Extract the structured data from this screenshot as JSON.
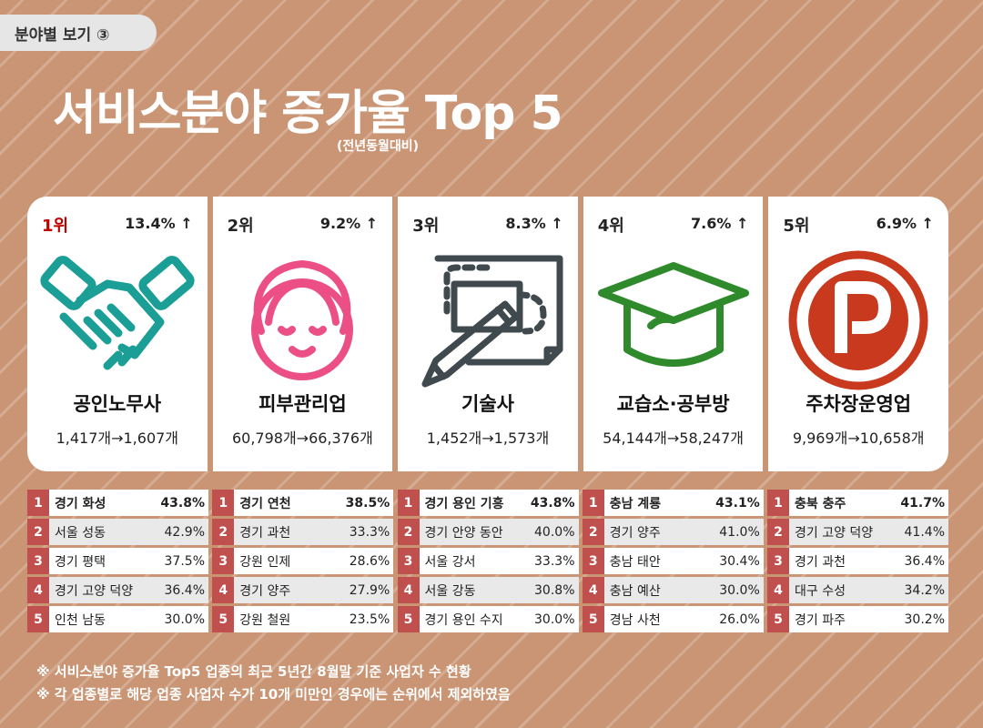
{
  "header": {
    "section_tab": "분야별 보기 ③",
    "title": "서비스분야 증가율 Top 5",
    "subtitle": "(전년동월대비)"
  },
  "cards": [
    {
      "rank": "1위",
      "rate": "13.4% ↑",
      "name": "공인노무사",
      "counts": "1,417개→1,607개",
      "icon": "handshake-icon",
      "color": "#1a9e96"
    },
    {
      "rank": "2위",
      "rate": "9.2% ↑",
      "name": "피부관리업",
      "counts": "60,798개→66,376개",
      "icon": "face-towel-icon",
      "color": "#ec4f86"
    },
    {
      "rank": "3위",
      "rate": "8.3% ↑",
      "name": "기술사",
      "counts": "1,452개→1,573개",
      "icon": "drawing-pencil-icon",
      "color": "#404a4e"
    },
    {
      "rank": "4위",
      "rate": "7.6% ↑",
      "name": "교습소·공부방",
      "counts": "54,144개→58,247개",
      "icon": "graduation-cap-icon",
      "color": "#2f8a2c"
    },
    {
      "rank": "5위",
      "rate": "6.9% ↑",
      "name": "주차장운영업",
      "counts": "9,969개→10,658개",
      "icon": "parking-icon",
      "color": "#c8391e"
    }
  ],
  "rankings": [
    [
      {
        "num": "1",
        "region": "경기 화성",
        "pct": "43.8%"
      },
      {
        "num": "2",
        "region": "서울 성동",
        "pct": "42.9%"
      },
      {
        "num": "3",
        "region": "경기 평택",
        "pct": "37.5%"
      },
      {
        "num": "4",
        "region": "경기 고양 덕양",
        "pct": "36.4%"
      },
      {
        "num": "5",
        "region": "인천 남동",
        "pct": "30.0%"
      }
    ],
    [
      {
        "num": "1",
        "region": "경기 연천",
        "pct": "38.5%"
      },
      {
        "num": "2",
        "region": "경기 과천",
        "pct": "33.3%"
      },
      {
        "num": "3",
        "region": "강원 인제",
        "pct": "28.6%"
      },
      {
        "num": "4",
        "region": "경기 양주",
        "pct": "27.9%"
      },
      {
        "num": "5",
        "region": "강원 철원",
        "pct": "23.5%"
      }
    ],
    [
      {
        "num": "1",
        "region": "경기 용인 기흥",
        "pct": "43.8%"
      },
      {
        "num": "2",
        "region": "경기 안양 동안",
        "pct": "40.0%"
      },
      {
        "num": "3",
        "region": "서울 강서",
        "pct": "33.3%"
      },
      {
        "num": "4",
        "region": "서울 강동",
        "pct": "30.8%"
      },
      {
        "num": "5",
        "region": "경기 용인 수지",
        "pct": "30.0%"
      }
    ],
    [
      {
        "num": "1",
        "region": "충남 계룡",
        "pct": "43.1%"
      },
      {
        "num": "2",
        "region": "경기 양주",
        "pct": "41.0%"
      },
      {
        "num": "3",
        "region": "충남 태안",
        "pct": "30.4%"
      },
      {
        "num": "4",
        "region": "충남 예산",
        "pct": "30.0%"
      },
      {
        "num": "5",
        "region": "경남 사천",
        "pct": "26.0%"
      }
    ],
    [
      {
        "num": "1",
        "region": "충북 충주",
        "pct": "41.7%"
      },
      {
        "num": "2",
        "region": "경기 고양 덕양",
        "pct": "41.4%"
      },
      {
        "num": "3",
        "region": "경기 과천",
        "pct": "36.4%"
      },
      {
        "num": "4",
        "region": "대구 수성",
        "pct": "34.2%"
      },
      {
        "num": "5",
        "region": "경기 파주",
        "pct": "30.2%"
      }
    ]
  ],
  "footnotes": [
    "※ 서비스분야 증가율 Top5 업종의 최근 5년간 8월말 기준 사업자 수 현황",
    "※ 각 업종별로 해당 업종 사업자 수가 10개 미만인 경우에는 순위에서 제외하였음"
  ],
  "colors": {
    "background": "#c99574",
    "rank_badge": "#c0504d",
    "first_rank_text": "#c00000"
  }
}
